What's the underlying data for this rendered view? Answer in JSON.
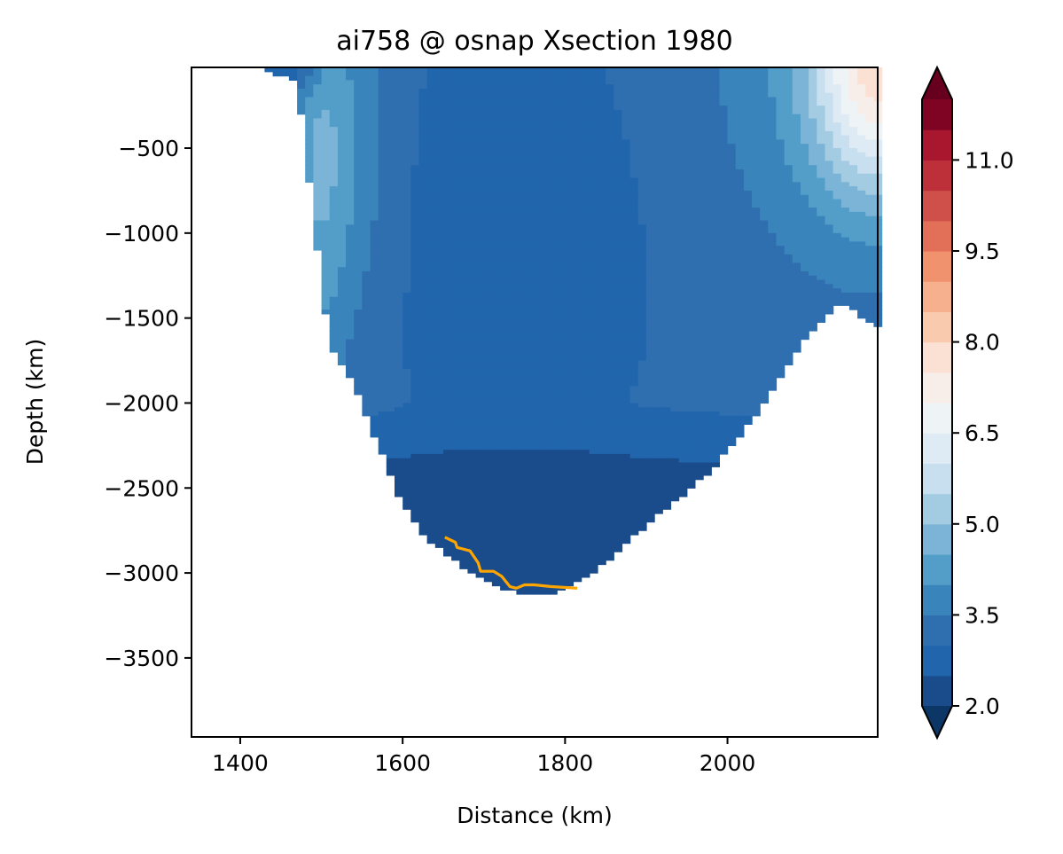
{
  "chart_data": {
    "type": "contourf",
    "title": "ai758 @ osnap Xsection 1980",
    "xlabel": "Distance (km)",
    "ylabel": "Depth (km)",
    "xlim": [
      1340,
      2185
    ],
    "ylim": [
      -3965,
      -25
    ],
    "x_ticks": [
      1400,
      1600,
      1800,
      2000
    ],
    "y_ticks": [
      -500,
      -1000,
      -1500,
      -2000,
      -2500,
      -3000,
      -3500
    ],
    "colorbar": {
      "levels": [
        2.0,
        2.5,
        3.0,
        3.5,
        4.0,
        4.5,
        5.0,
        5.5,
        6.0,
        6.5,
        7.0,
        7.5,
        8.0,
        8.5,
        9.0,
        9.5,
        10.0,
        10.5,
        11.0,
        11.5,
        12.0
      ],
      "tick_values": [
        2.0,
        3.5,
        5.0,
        6.5,
        8.0,
        9.5,
        11.0
      ],
      "tick_labels": [
        "2.0",
        "3.5",
        "5.0",
        "6.5",
        "8.0",
        "9.5",
        "11.0"
      ],
      "extend": "both",
      "colors": [
        "#1a4c8c",
        "#2166ac",
        "#2f6fb0",
        "#3a84bc",
        "#539ec9",
        "#7bb4d6",
        "#a3cbe2",
        "#c7dfee",
        "#dfebf4",
        "#eef3f6",
        "#f8eee9",
        "#fbe1d3",
        "#f9caae",
        "#f6b08d",
        "#f0926e",
        "#e27059",
        "#cf4f4a",
        "#bd303a",
        "#a8172d",
        "#7f0423"
      ],
      "under_color": "#0b3666",
      "over_color": "#67001f"
    },
    "bottom_bathymetry_x": [
      1430,
      1470,
      1500,
      1510,
      1540,
      1570,
      1600,
      1630,
      1660,
      1700,
      1740,
      1790,
      1840,
      1880,
      1930,
      1980,
      2030,
      2070,
      2100,
      2140,
      2180
    ],
    "bottom_bathymetry_y": [
      -40,
      -100,
      -1300,
      -1650,
      -1900,
      -2250,
      -2600,
      -2800,
      -2920,
      -3050,
      -3120,
      -3120,
      -2980,
      -2800,
      -2600,
      -2400,
      -2100,
      -1800,
      -1600,
      -1400,
      -1550
    ],
    "contours": [
      {
        "level": 3.0,
        "x": [
          1555,
          1600,
          1650,
          1700,
          1750,
          1800,
          1850,
          1900,
          1950,
          1985
        ],
        "y": [
          -2300,
          -2100,
          -1900,
          -1950,
          -1980,
          -2020,
          -2100,
          -2180,
          -2230,
          -2300
        ]
      },
      {
        "level": 3.5,
        "x": [
          1505,
          1520,
          1540,
          1560,
          1620,
          1700,
          1800,
          1880,
          1900,
          1920,
          1960,
          2000,
          2060,
          2080,
          2110
        ],
        "y": [
          -60,
          -400,
          -900,
          -1300,
          -1500,
          -1400,
          -1200,
          -1300,
          -1550,
          -1700,
          -1600,
          -1300,
          -1100,
          -700,
          -350
        ]
      },
      {
        "level": 3.5,
        "x": [
          1610,
          1650,
          1700,
          1760,
          1800,
          1830,
          1860
        ],
        "y": [
          -1400,
          -200,
          -150,
          -150,
          -150,
          -200,
          -1400
        ]
      },
      {
        "level": 5.0,
        "x": [
          1480,
          1500,
          1510,
          1520
        ],
        "y": [
          -100,
          -600,
          -1200,
          -1300
        ]
      },
      {
        "level": 6.5,
        "x": [
          2040,
          2080,
          2110,
          2140,
          2180
        ],
        "y": [
          -40,
          -250,
          -500,
          -560,
          -560
        ]
      },
      {
        "level": 7.0,
        "x": [
          2100,
          2120,
          2150,
          2180
        ],
        "y": [
          -40,
          -250,
          -380,
          -400
        ]
      }
    ],
    "highlight_line": {
      "color": "#ffa500",
      "x": [
        1652,
        1665,
        1667,
        1683,
        1693,
        1696,
        1712,
        1722,
        1732,
        1740,
        1750,
        1762,
        1782,
        1815
      ],
      "y": [
        -2790,
        -2820,
        -2850,
        -2870,
        -2940,
        -2990,
        -2990,
        -3020,
        -3080,
        -3090,
        -3070,
        -3070,
        -3080,
        -3090
      ]
    }
  }
}
